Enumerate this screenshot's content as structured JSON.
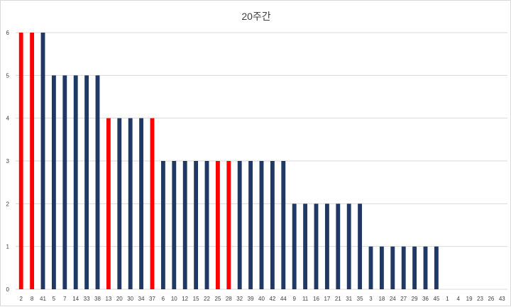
{
  "chart_data": {
    "type": "bar",
    "title": "20주간",
    "xlabel": "",
    "ylabel": "",
    "ylim": [
      0,
      6
    ],
    "yticks": [
      0,
      1,
      2,
      3,
      4,
      5,
      6
    ],
    "grid": true,
    "legend": "none",
    "colors": {
      "default": "#1f3864",
      "highlight": "#ff0000",
      "grid": "#d9d9d9"
    },
    "categories": [
      "2",
      "8",
      "41",
      "5",
      "7",
      "14",
      "33",
      "38",
      "13",
      "20",
      "30",
      "34",
      "37",
      "6",
      "10",
      "12",
      "15",
      "22",
      "25",
      "28",
      "32",
      "39",
      "40",
      "42",
      "44",
      "9",
      "11",
      "16",
      "17",
      "21",
      "31",
      "35",
      "3",
      "18",
      "24",
      "27",
      "29",
      "36",
      "45",
      "1",
      "4",
      "19",
      "23",
      "26",
      "43"
    ],
    "values": [
      6,
      6,
      6,
      5,
      5,
      5,
      5,
      5,
      4,
      4,
      4,
      4,
      4,
      3,
      3,
      3,
      3,
      3,
      3,
      3,
      3,
      3,
      3,
      3,
      3,
      2,
      2,
      2,
      2,
      2,
      2,
      2,
      1,
      1,
      1,
      1,
      1,
      1,
      1,
      0,
      0,
      0,
      0,
      0,
      0
    ],
    "highlighted": [
      "2",
      "8",
      "13",
      "37",
      "25",
      "28"
    ]
  }
}
